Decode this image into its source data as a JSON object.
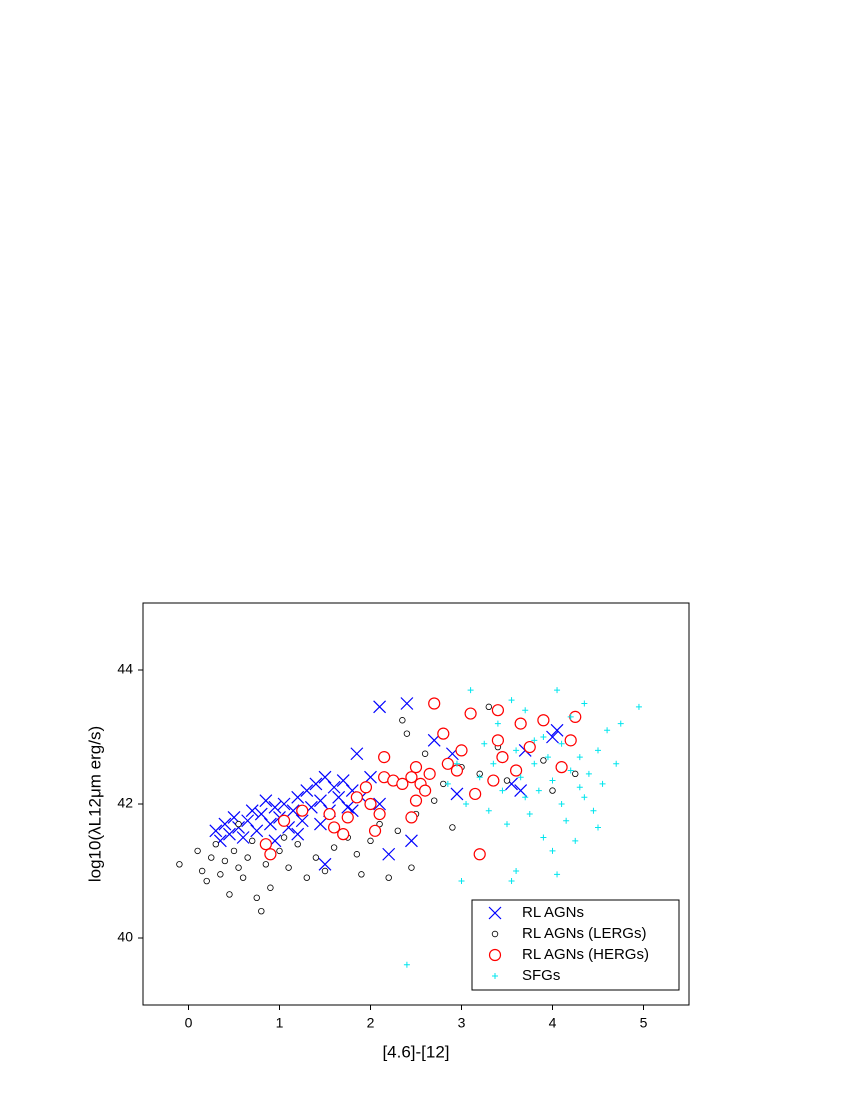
{
  "chart_data": {
    "type": "scatter",
    "xlabel": "[4.6]-[12]",
    "ylabel": "log10(λL12μm erg/s)",
    "xlim": [
      -0.5,
      5.5
    ],
    "ylim": [
      39,
      45
    ],
    "xticks": [
      0,
      1,
      2,
      3,
      4,
      5
    ],
    "yticks": [
      40,
      42,
      44
    ],
    "legend": "lower right",
    "series": [
      {
        "name": "RL AGNs",
        "color": "#0000ff",
        "marker": "x",
        "x": [
          0.3,
          0.35,
          0.4,
          0.45,
          0.5,
          0.55,
          0.6,
          0.65,
          0.7,
          0.75,
          0.8,
          0.85,
          0.9,
          0.95,
          1.0,
          1.05,
          1.1,
          1.15,
          1.2,
          1.25,
          1.3,
          1.35,
          1.4,
          1.45,
          1.5,
          1.55,
          1.6,
          1.65,
          1.7,
          1.75,
          1.8,
          1.9,
          2.0,
          2.1,
          1.2,
          0.95,
          1.45,
          2.1,
          2.4,
          2.7,
          2.9,
          2.95,
          3.55,
          3.65,
          3.7,
          4.0,
          4.05,
          2.45,
          2.2,
          1.85,
          1.5,
          1.8
        ],
        "values": [
          41.6,
          41.45,
          41.7,
          41.55,
          41.8,
          41.65,
          41.5,
          41.75,
          41.9,
          41.6,
          41.85,
          42.05,
          41.7,
          41.95,
          41.8,
          42.0,
          41.65,
          41.9,
          42.1,
          41.75,
          42.2,
          41.95,
          42.3,
          42.05,
          42.4,
          41.9,
          42.25,
          42.1,
          42.35,
          41.95,
          42.2,
          42.1,
          42.4,
          42.0,
          41.55,
          41.45,
          41.7,
          43.45,
          43.5,
          42.95,
          42.75,
          42.15,
          42.3,
          42.2,
          42.8,
          43.0,
          43.1,
          41.45,
          41.25,
          42.75,
          41.1,
          41.9
        ]
      },
      {
        "name": "RL AGNs (LERGs)",
        "color": "#000000",
        "marker": "small-circle",
        "x": [
          -0.1,
          0.1,
          0.15,
          0.2,
          0.25,
          0.3,
          0.35,
          0.4,
          0.45,
          0.5,
          0.55,
          0.6,
          0.65,
          0.7,
          0.75,
          0.8,
          0.85,
          0.9,
          1.0,
          1.1,
          1.2,
          1.3,
          1.4,
          1.5,
          1.6,
          1.75,
          1.85,
          1.9,
          2.0,
          2.1,
          2.2,
          2.3,
          2.35,
          2.4,
          2.45,
          2.5,
          2.6,
          2.7,
          2.8,
          2.9,
          3.0,
          3.2,
          3.3,
          3.4,
          3.5,
          3.6,
          3.9,
          4.0,
          4.25,
          0.55,
          1.05
        ],
        "values": [
          41.1,
          41.3,
          41.0,
          40.85,
          41.2,
          41.4,
          40.95,
          41.15,
          40.65,
          41.3,
          41.05,
          40.9,
          41.2,
          41.45,
          40.6,
          40.4,
          41.1,
          40.75,
          41.3,
          41.05,
          41.4,
          40.9,
          41.2,
          41.0,
          41.35,
          41.5,
          41.25,
          40.95,
          41.45,
          41.7,
          40.9,
          41.6,
          43.25,
          43.05,
          41.05,
          41.85,
          42.75,
          42.05,
          42.3,
          41.65,
          42.55,
          42.45,
          43.45,
          42.85,
          42.35,
          42.5,
          42.65,
          42.2,
          42.45,
          41.7,
          41.5
        ]
      },
      {
        "name": "RL AGNs (HERGs)",
        "color": "#ff0000",
        "marker": "circle",
        "x": [
          0.85,
          0.9,
          1.05,
          1.25,
          1.55,
          1.6,
          1.7,
          1.75,
          1.85,
          1.95,
          2.0,
          2.05,
          2.1,
          2.15,
          2.15,
          2.25,
          2.35,
          2.45,
          2.5,
          2.55,
          2.6,
          2.65,
          2.7,
          2.8,
          2.85,
          2.95,
          3.0,
          3.1,
          3.15,
          3.2,
          3.35,
          3.4,
          3.4,
          3.45,
          3.6,
          3.65,
          3.75,
          3.9,
          4.1,
          4.2,
          4.25,
          2.45,
          2.5
        ],
        "values": [
          41.4,
          41.25,
          41.75,
          41.9,
          41.85,
          41.65,
          41.55,
          41.8,
          42.1,
          42.25,
          42.0,
          41.6,
          41.85,
          42.7,
          42.4,
          42.35,
          42.3,
          42.4,
          42.55,
          42.3,
          42.2,
          42.45,
          43.5,
          43.05,
          42.6,
          42.5,
          42.8,
          43.35,
          42.15,
          41.25,
          42.35,
          43.4,
          42.95,
          42.7,
          42.5,
          43.2,
          42.85,
          43.25,
          42.55,
          42.95,
          43.3,
          41.8,
          42.05
        ]
      },
      {
        "name": "SFGs",
        "color": "#00e5ee",
        "marker": "plus",
        "x": [
          2.4,
          3.0,
          2.85,
          2.95,
          3.05,
          3.1,
          3.2,
          3.25,
          3.3,
          3.35,
          3.4,
          3.45,
          3.5,
          3.55,
          3.6,
          3.6,
          3.65,
          3.7,
          3.75,
          3.8,
          3.85,
          3.9,
          3.9,
          3.95,
          4.0,
          4.0,
          4.05,
          4.1,
          4.1,
          4.15,
          4.2,
          4.2,
          4.25,
          4.3,
          4.35,
          4.35,
          4.4,
          4.45,
          4.5,
          4.55,
          4.6,
          4.7,
          4.75,
          4.95,
          3.55,
          4.05,
          3.8,
          4.3,
          3.7,
          4.5
        ],
        "values": [
          39.6,
          40.85,
          42.3,
          42.6,
          42.0,
          43.7,
          42.4,
          42.9,
          41.9,
          42.6,
          43.2,
          42.2,
          41.7,
          43.55,
          42.8,
          41.0,
          42.4,
          43.4,
          41.85,
          42.6,
          42.2,
          41.5,
          43.0,
          42.7,
          41.3,
          42.35,
          43.7,
          42.0,
          42.9,
          41.75,
          43.3,
          42.5,
          41.45,
          42.7,
          42.1,
          43.5,
          42.45,
          41.9,
          42.8,
          42.3,
          43.1,
          42.6,
          43.2,
          43.45,
          40.85,
          40.95,
          42.95,
          42.25,
          42.1,
          41.65
        ]
      }
    ]
  }
}
